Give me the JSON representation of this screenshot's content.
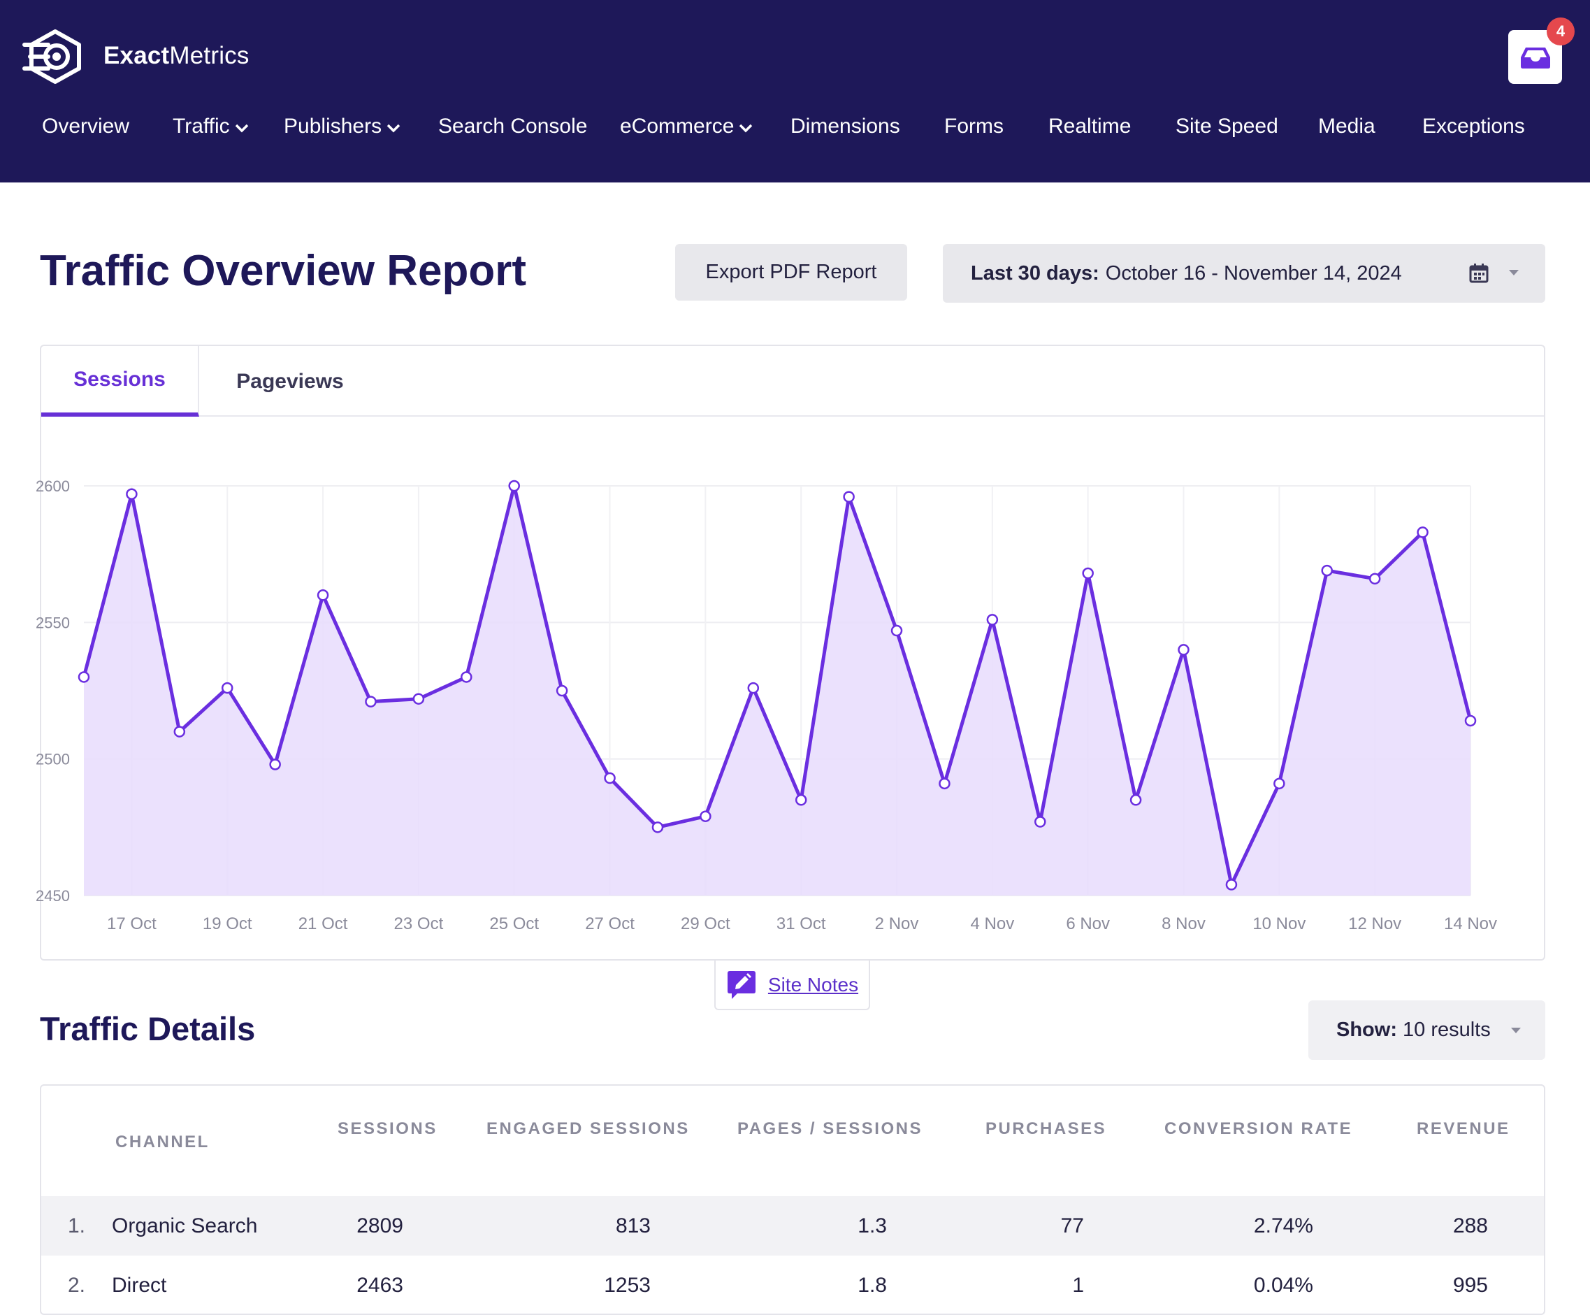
{
  "app": {
    "brand_bold": "Exact",
    "brand_light": "Metrics",
    "notification_count": "4"
  },
  "nav": [
    {
      "label": "Overview",
      "dropdown": false
    },
    {
      "label": "Traffic",
      "dropdown": true
    },
    {
      "label": "Publishers",
      "dropdown": true
    },
    {
      "label": "Search Console",
      "dropdown": false
    },
    {
      "label": "eCommerce",
      "dropdown": true
    },
    {
      "label": "Dimensions",
      "dropdown": false
    },
    {
      "label": "Forms",
      "dropdown": false
    },
    {
      "label": "Realtime",
      "dropdown": false
    },
    {
      "label": "Site Speed",
      "dropdown": false
    },
    {
      "label": "Media",
      "dropdown": false
    },
    {
      "label": "Exceptions",
      "dropdown": false
    }
  ],
  "report": {
    "title": "Traffic Overview Report",
    "export_label": "Export PDF Report",
    "date_label": "Last 30 days:",
    "date_range": "October 16 - November 14, 2024"
  },
  "tabs": {
    "sessions": "Sessions",
    "pageviews": "Pageviews",
    "active": "sessions"
  },
  "chart_data": {
    "type": "area",
    "x": [
      "16 Oct",
      "17 Oct",
      "18 Oct",
      "19 Oct",
      "20 Oct",
      "21 Oct",
      "22 Oct",
      "23 Oct",
      "24 Oct",
      "25 Oct",
      "26 Oct",
      "27 Oct",
      "28 Oct",
      "29 Oct",
      "30 Oct",
      "31 Oct",
      "1 Nov",
      "2 Nov",
      "3 Nov",
      "4 Nov",
      "5 Nov",
      "6 Nov",
      "7 Nov",
      "8 Nov",
      "9 Nov",
      "10 Nov",
      "11 Nov",
      "12 Nov",
      "13 Nov",
      "14 Nov"
    ],
    "series": [
      {
        "values": [
          2530,
          2597,
          2510,
          2526,
          2498,
          2560,
          2521,
          2522,
          2530,
          2600,
          2525,
          2493,
          2475,
          2479,
          2526,
          2485,
          2596,
          2547,
          2491,
          2551,
          2477,
          2568,
          2485,
          2540,
          2454,
          2491,
          2569,
          2566,
          2583,
          2514
        ]
      }
    ],
    "x_tick_labels": [
      "17 Oct",
      "19 Oct",
      "21 Oct",
      "23 Oct",
      "25 Oct",
      "27 Oct",
      "29 Oct",
      "31 Oct",
      "2 Nov",
      "4 Nov",
      "6 Nov",
      "8 Nov",
      "10 Nov",
      "12 Nov",
      "14 Nov"
    ],
    "y_ticks": [
      2600,
      2550,
      2500,
      2450
    ],
    "ylim": [
      2450,
      2600
    ],
    "grid": true,
    "line_color": "#6a2ee0",
    "fill_color": "#e7dcfd"
  },
  "site_notes_label": "Site Notes",
  "details": {
    "title": "Traffic Details",
    "show_label": "Show:",
    "show_value": "10 results",
    "columns": [
      "CHANNEL",
      "SESSIONS",
      "ENGAGED SESSIONS",
      "PAGES / SESSIONS",
      "PURCHASES",
      "CONVERSION RATE",
      "REVENUE"
    ],
    "rows": [
      {
        "idx": "1.",
        "channel": "Organic Search",
        "sessions": "2809",
        "engaged": "813",
        "pages": "1.3",
        "purchases": "77",
        "conversion": "2.74%",
        "revenue": "288"
      },
      {
        "idx": "2.",
        "channel": "Direct",
        "sessions": "2463",
        "engaged": "1253",
        "pages": "1.8",
        "purchases": "1",
        "conversion": "0.04%",
        "revenue": "995"
      }
    ]
  }
}
